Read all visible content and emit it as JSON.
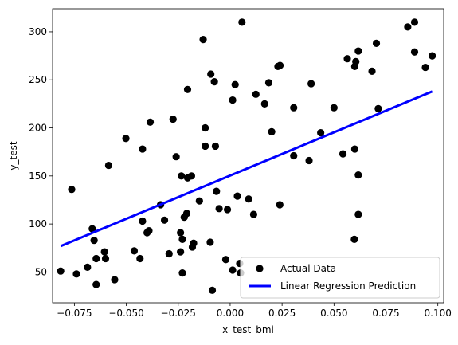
{
  "chart_data": {
    "type": "scatter",
    "xlabel": "x_test_bmi",
    "ylabel": "y_test",
    "xlim": [
      -0.0855,
      0.1028
    ],
    "ylim": [
      18,
      324
    ],
    "grid": false,
    "legend_position": "lower-right",
    "xticks": [
      -0.075,
      -0.05,
      -0.025,
      0.0,
      0.025,
      0.05,
      0.075,
      0.1
    ],
    "xtick_labels": [
      "−0.075",
      "−0.050",
      "−0.025",
      "0.000",
      "0.025",
      "0.050",
      "0.075",
      "0.100"
    ],
    "yticks": [
      50,
      100,
      150,
      200,
      250,
      300
    ],
    "ytick_labels": [
      "50",
      "100",
      "150",
      "200",
      "250",
      "300"
    ],
    "series": [
      {
        "name": "Actual Data",
        "kind": "scatter",
        "color": "#000000",
        "points": [
          [
            -0.0816,
            51
          ],
          [
            -0.0763,
            136
          ],
          [
            -0.074,
            48
          ],
          [
            -0.0687,
            55
          ],
          [
            -0.0664,
            95
          ],
          [
            -0.0655,
            83
          ],
          [
            -0.0645,
            64
          ],
          [
            -0.0645,
            37
          ],
          [
            -0.0605,
            71
          ],
          [
            -0.06,
            64
          ],
          [
            -0.0585,
            161
          ],
          [
            -0.0556,
            42
          ],
          [
            -0.0502,
            189
          ],
          [
            -0.0462,
            72
          ],
          [
            -0.0434,
            64
          ],
          [
            -0.0422,
            178
          ],
          [
            -0.0422,
            103
          ],
          [
            -0.04,
            91
          ],
          [
            -0.0391,
            93
          ],
          [
            -0.0385,
            206
          ],
          [
            -0.0335,
            120
          ],
          [
            -0.0316,
            104
          ],
          [
            -0.0294,
            69
          ],
          [
            -0.0275,
            209
          ],
          [
            -0.026,
            170
          ],
          [
            -0.0239,
            91
          ],
          [
            -0.0239,
            71
          ],
          [
            -0.0235,
            150
          ],
          [
            -0.023,
            84
          ],
          [
            -0.023,
            49
          ],
          [
            -0.0221,
            107
          ],
          [
            -0.0209,
            111
          ],
          [
            -0.0205,
            148
          ],
          [
            -0.0205,
            240
          ],
          [
            -0.0186,
            150
          ],
          [
            -0.0182,
            76
          ],
          [
            -0.0176,
            80
          ],
          [
            -0.0148,
            124
          ],
          [
            -0.013,
            292
          ],
          [
            -0.012,
            200
          ],
          [
            -0.012,
            181
          ],
          [
            -0.0096,
            81
          ],
          [
            -0.0093,
            256
          ],
          [
            -0.0086,
            31
          ],
          [
            -0.0076,
            248
          ],
          [
            -0.0071,
            181
          ],
          [
            -0.0066,
            134
          ],
          [
            -0.0053,
            116
          ],
          [
            -0.0021,
            63
          ],
          [
            -0.0013,
            115
          ],
          [
            0.0012,
            229
          ],
          [
            0.0012,
            52
          ],
          [
            0.0024,
            245
          ],
          [
            0.0035,
            129
          ],
          [
            0.0046,
            59
          ],
          [
            0.005,
            49
          ],
          [
            0.0057,
            310
          ],
          [
            0.0089,
            126
          ],
          [
            0.0113,
            110
          ],
          [
            0.0124,
            235
          ],
          [
            0.0166,
            225
          ],
          [
            0.0186,
            247
          ],
          [
            0.02,
            196
          ],
          [
            0.023,
            264
          ],
          [
            0.0239,
            120
          ],
          [
            0.024,
            265
          ],
          [
            0.0306,
            171
          ],
          [
            0.0306,
            221
          ],
          [
            0.038,
            166
          ],
          [
            0.039,
            246
          ],
          [
            0.0436,
            195
          ],
          [
            0.05,
            221
          ],
          [
            0.0543,
            173
          ],
          [
            0.0564,
            272
          ],
          [
            0.0598,
            84
          ],
          [
            0.06,
            178
          ],
          [
            0.06,
            264
          ],
          [
            0.0605,
            269
          ],
          [
            0.0617,
            110
          ],
          [
            0.0617,
            151
          ],
          [
            0.0617,
            280
          ],
          [
            0.0683,
            259
          ],
          [
            0.0704,
            288
          ],
          [
            0.0713,
            220
          ],
          [
            0.0855,
            305
          ],
          [
            0.0888,
            310
          ],
          [
            0.0888,
            279
          ],
          [
            0.094,
            263
          ],
          [
            0.0973,
            275
          ]
        ]
      },
      {
        "name": "Linear Regression Prediction",
        "kind": "line",
        "color": "#0000ff",
        "points": [
          [
            -0.0816,
            77
          ],
          [
            0.0973,
            238
          ]
        ]
      }
    ]
  }
}
